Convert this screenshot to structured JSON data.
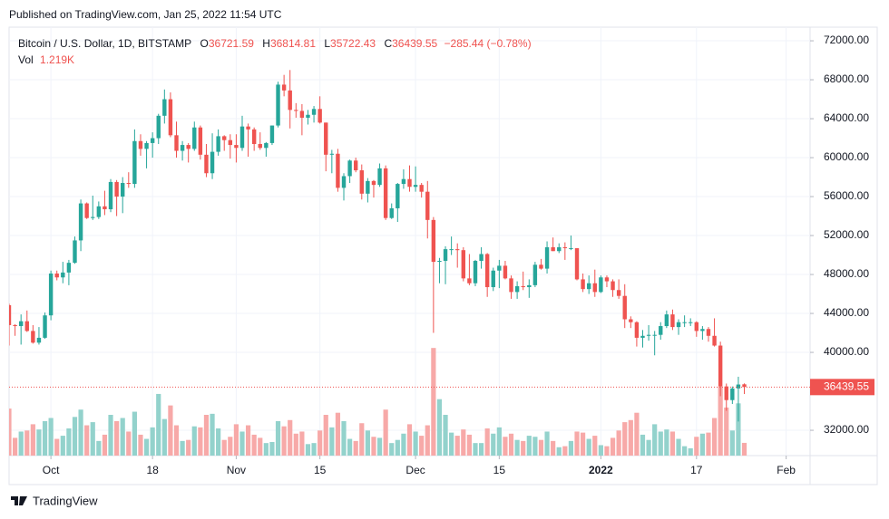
{
  "chart_data": {
    "type": "candlestick",
    "published": "Published on TradingView.com, Jan 25, 2022 11:54 UTC",
    "symbol": "Bitcoin / U.S. Dollar, 1D, BITSTAMP",
    "ohlc_labels": [
      "O",
      "H",
      "L",
      "C"
    ],
    "change_label": "−285.44 (−0.78%)",
    "volume_label": "Vol",
    "volume_value_label": "1.219K",
    "footer_brand": "TradingView",
    "up_color": "#26a69a",
    "down_color": "#ef5350",
    "volume_up_color": "#93d2cc",
    "volume_down_color": "#f7a9a8",
    "grid": true,
    "xlim": [
      "2021-09-24",
      "2022-02-05"
    ],
    "xticks": [
      {
        "value": "2021-10-01",
        "label": "Oct"
      },
      {
        "value": "2021-10-18",
        "label": "18"
      },
      {
        "value": "2021-11-01",
        "label": "Nov"
      },
      {
        "value": "2021-11-15",
        "label": "15"
      },
      {
        "value": "2021-12-01",
        "label": "Dec"
      },
      {
        "value": "2021-12-15",
        "label": "15"
      },
      {
        "value": "2022-01-01",
        "label": "2022"
      },
      {
        "value": "2022-01-17",
        "label": "17"
      },
      {
        "value": "2022-02-01",
        "label": "Feb"
      }
    ],
    "ylim": [
      29400,
      73400
    ],
    "yticks": [
      {
        "value": 72000,
        "label": "72000.00"
      },
      {
        "value": 68000,
        "label": "68000.00"
      },
      {
        "value": 64000,
        "label": "64000.00"
      },
      {
        "value": 60000,
        "label": "60000.00"
      },
      {
        "value": 56000,
        "label": "56000.00"
      },
      {
        "value": 52000,
        "label": "52000.00"
      },
      {
        "value": 48000,
        "label": "48000.00"
      },
      {
        "value": 44000,
        "label": "44000.00"
      },
      {
        "value": 40000,
        "label": "40000.00"
      },
      {
        "value": 32000,
        "label": "32000.00"
      }
    ],
    "volume_lim": [
      0,
      41
    ],
    "x": [
      "2021-09-24",
      "2021-09-25",
      "2021-09-26",
      "2021-09-27",
      "2021-09-28",
      "2021-09-29",
      "2021-09-30",
      "2021-10-01",
      "2021-10-02",
      "2021-10-03",
      "2021-10-04",
      "2021-10-05",
      "2021-10-06",
      "2021-10-07",
      "2021-10-08",
      "2021-10-09",
      "2021-10-10",
      "2021-10-11",
      "2021-10-12",
      "2021-10-13",
      "2021-10-14",
      "2021-10-15",
      "2021-10-16",
      "2021-10-17",
      "2021-10-18",
      "2021-10-19",
      "2021-10-20",
      "2021-10-21",
      "2021-10-22",
      "2021-10-23",
      "2021-10-24",
      "2021-10-25",
      "2021-10-26",
      "2021-10-27",
      "2021-10-28",
      "2021-10-29",
      "2021-10-30",
      "2021-10-31",
      "2021-11-01",
      "2021-11-02",
      "2021-11-03",
      "2021-11-04",
      "2021-11-05",
      "2021-11-06",
      "2021-11-07",
      "2021-11-08",
      "2021-11-09",
      "2021-11-10",
      "2021-11-11",
      "2021-11-12",
      "2021-11-13",
      "2021-11-14",
      "2021-11-15",
      "2021-11-16",
      "2021-11-17",
      "2021-11-18",
      "2021-11-19",
      "2021-11-20",
      "2021-11-21",
      "2021-11-22",
      "2021-11-23",
      "2021-11-24",
      "2021-11-25",
      "2021-11-26",
      "2021-11-27",
      "2021-11-28",
      "2021-11-29",
      "2021-11-30",
      "2021-12-01",
      "2021-12-02",
      "2021-12-03",
      "2021-12-04",
      "2021-12-05",
      "2021-12-06",
      "2021-12-07",
      "2021-12-08",
      "2021-12-09",
      "2021-12-10",
      "2021-12-11",
      "2021-12-12",
      "2021-12-13",
      "2021-12-14",
      "2021-12-15",
      "2021-12-16",
      "2021-12-17",
      "2021-12-18",
      "2021-12-19",
      "2021-12-20",
      "2021-12-21",
      "2021-12-22",
      "2021-12-23",
      "2021-12-24",
      "2021-12-25",
      "2021-12-26",
      "2021-12-27",
      "2021-12-28",
      "2021-12-29",
      "2021-12-30",
      "2021-12-31",
      "2022-01-01",
      "2022-01-02",
      "2022-01-03",
      "2022-01-04",
      "2022-01-05",
      "2022-01-06",
      "2022-01-07",
      "2022-01-08",
      "2022-01-09",
      "2022-01-10",
      "2022-01-11",
      "2022-01-12",
      "2022-01-13",
      "2022-01-14",
      "2022-01-15",
      "2022-01-16",
      "2022-01-17",
      "2022-01-18",
      "2022-01-19",
      "2022-01-20",
      "2022-01-21",
      "2022-01-22",
      "2022-01-23",
      "2022-01-24",
      "2022-01-25"
    ],
    "open": [
      44850,
      42800,
      42700,
      43200,
      42200,
      41000,
      41500,
      43800,
      48100,
      47700,
      48200,
      49200,
      51500,
      55300,
      53800,
      53900,
      55000,
      54700,
      57500,
      56000,
      57400,
      57300,
      61700,
      60900,
      61500,
      62000,
      64300,
      66000,
      62300,
      60700,
      61300,
      60900,
      63100,
      60300,
      58400,
      60600,
      62200,
      61800,
      61300,
      61000,
      63200,
      62900,
      61400,
      61000,
      61500,
      63300,
      67500,
      66900,
      64900,
      64800,
      64100,
      64400,
      65000,
      63600,
      60300,
      60400,
      56900,
      58100,
      59700,
      58700,
      56300,
      57600,
      57200,
      58900,
      53800,
      54800,
      57300,
      57800,
      57000,
      57200,
      56500,
      53600,
      49300,
      49400,
      50600,
      50600,
      50500,
      47600,
      47100,
      49400,
      50100,
      46700,
      48400,
      48900,
      47600,
      46200,
      46800,
      46700,
      46900,
      49000,
      48600,
      50800,
      50400,
      50800,
      50700,
      50700,
      47500,
      46500,
      47100,
      46200,
      47700,
      47300,
      46400,
      45800,
      43400,
      43100,
      41500,
      41700,
      41800,
      41800,
      42700,
      43900,
      42600,
      43100,
      43100,
      43100,
      42200,
      42400,
      41700,
      40700,
      36500,
      35100,
      36300,
      36721.59
    ],
    "high": [
      45000,
      42900,
      43900,
      44300,
      42800,
      42600,
      44100,
      48400,
      48400,
      49300,
      49500,
      51900,
      55700,
      55400,
      56100,
      55500,
      56600,
      57800,
      57700,
      58000,
      58500,
      62900,
      62400,
      61700,
      62600,
      64500,
      67000,
      66700,
      63700,
      61700,
      61500,
      63700,
      63300,
      61400,
      62500,
      62900,
      62300,
      62400,
      62400,
      64300,
      63500,
      63100,
      62600,
      61600,
      63300,
      67800,
      68500,
      69000,
      65600,
      65500,
      64900,
      65300,
      66300,
      63600,
      60800,
      60900,
      58400,
      59800,
      60000,
      59300,
      57900,
      57700,
      59400,
      59200,
      55300,
      57400,
      58800,
      59200,
      59100,
      57400,
      57600,
      53900,
      49700,
      50900,
      51900,
      51200,
      50800,
      50100,
      49500,
      50800,
      50200,
      48700,
      49500,
      49400,
      47900,
      47300,
      48300,
      47500,
      49300,
      49600,
      51400,
      51800,
      51200,
      51300,
      52000,
      50700,
      48100,
      47900,
      48500,
      47900,
      47900,
      47500,
      47500,
      47000,
      43700,
      43200,
      42300,
      42800,
      42200,
      43100,
      44300,
      44400,
      43400,
      43800,
      43500,
      43200,
      42700,
      42600,
      43500,
      41100,
      36800,
      36500,
      37500,
      36814.81
    ],
    "low": [
      40700,
      41700,
      40800,
      42100,
      40900,
      40800,
      41400,
      43300,
      47400,
      47100,
      46900,
      49100,
      50400,
      53700,
      53600,
      53700,
      54100,
      54400,
      54000,
      54300,
      56900,
      56900,
      60200,
      58900,
      60000,
      61400,
      63500,
      62100,
      60000,
      59700,
      59500,
      60700,
      59800,
      58000,
      57800,
      60200,
      60700,
      59900,
      59500,
      60700,
      60100,
      60700,
      60800,
      60100,
      61300,
      63100,
      66300,
      63000,
      64100,
      62300,
      63400,
      63600,
      63500,
      58600,
      58400,
      56500,
      55600,
      57400,
      58500,
      55700,
      55400,
      55900,
      57000,
      53600,
      53700,
      53400,
      56800,
      56500,
      56500,
      55900,
      51700,
      42000,
      47100,
      47000,
      50000,
      48700,
      47300,
      46900,
      46800,
      48600,
      45700,
      46300,
      46600,
      47500,
      45500,
      45500,
      46400,
      45600,
      46700,
      48500,
      48100,
      50400,
      50200,
      49500,
      50500,
      47400,
      46200,
      46000,
      45700,
      46100,
      46700,
      45700,
      45500,
      42500,
      42500,
      40600,
      40500,
      41200,
      39700,
      41300,
      42500,
      42300,
      41800,
      42600,
      42700,
      41600,
      41300,
      41100,
      40600,
      35500,
      34000,
      34700,
      32900,
      35722.43
    ],
    "close": [
      42800,
      42700,
      43200,
      42200,
      41000,
      41500,
      43800,
      48100,
      47700,
      48200,
      49200,
      51500,
      55300,
      53800,
      53900,
      55000,
      54700,
      57500,
      56000,
      57400,
      57300,
      61700,
      60900,
      61500,
      62000,
      64300,
      66000,
      62300,
      60700,
      61300,
      60900,
      63100,
      60300,
      58400,
      60600,
      62200,
      61800,
      61300,
      61000,
      63200,
      62900,
      61400,
      61000,
      61500,
      63300,
      67500,
      66900,
      64900,
      64800,
      64100,
      64400,
      65000,
      63600,
      60300,
      60400,
      56900,
      58100,
      59700,
      58700,
      56300,
      57600,
      57200,
      58900,
      53800,
      54800,
      57300,
      57800,
      57000,
      57200,
      56500,
      53600,
      49300,
      49400,
      50600,
      50600,
      50500,
      47600,
      47100,
      49400,
      50100,
      46700,
      48400,
      48900,
      47600,
      46200,
      46800,
      46700,
      46900,
      49000,
      48600,
      50800,
      50400,
      50800,
      50700,
      50700,
      47500,
      46500,
      47100,
      46200,
      47700,
      47300,
      46400,
      45800,
      43400,
      43100,
      41500,
      41700,
      41800,
      41800,
      42700,
      43900,
      42600,
      43100,
      43100,
      43100,
      42200,
      42400,
      41700,
      40700,
      36500,
      35100,
      36300,
      36700,
      36439.55
    ],
    "volume": [
      4.5,
      1.7,
      2.3,
      2.4,
      3.0,
      2.5,
      3.3,
      3.6,
      1.6,
      1.9,
      2.6,
      3.7,
      4.4,
      2.9,
      3.2,
      1.4,
      2.0,
      3.9,
      3.3,
      3.6,
      2.3,
      4.2,
      2.0,
      1.6,
      2.7,
      5.9,
      3.5,
      4.8,
      2.9,
      1.4,
      1.5,
      2.8,
      2.7,
      3.9,
      4.0,
      2.6,
      1.5,
      1.8,
      3.0,
      2.3,
      2.9,
      2.0,
      1.7,
      1.2,
      1.3,
      3.3,
      2.8,
      3.4,
      2.1,
      2.3,
      1.1,
      1.2,
      2.4,
      3.9,
      2.7,
      4.1,
      3.3,
      1.6,
      1.4,
      3.1,
      2.4,
      1.8,
      1.7,
      4.4,
      1.2,
      1.5,
      2.1,
      3.0,
      2.3,
      1.9,
      2.9,
      10.3,
      5.4,
      3.9,
      2.2,
      1.9,
      2.5,
      2.0,
      1.2,
      1.2,
      2.6,
      2.1,
      2.7,
      1.8,
      2.1,
      1.5,
      1.4,
      1.9,
      1.8,
      1.5,
      2.3,
      1.4,
      0.8,
      0.9,
      1.4,
      2.3,
      2.2,
      1.6,
      1.9,
      1.0,
      0.9,
      1.7,
      2.4,
      3.2,
      3.4,
      4.1,
      2.0,
      1.5,
      3.0,
      2.3,
      2.5,
      2.3,
      1.6,
      0.9,
      0.7,
      1.8,
      2.1,
      2.2,
      3.6,
      6.6,
      4.6,
      2.4,
      5.0,
      1.219
    ]
  }
}
